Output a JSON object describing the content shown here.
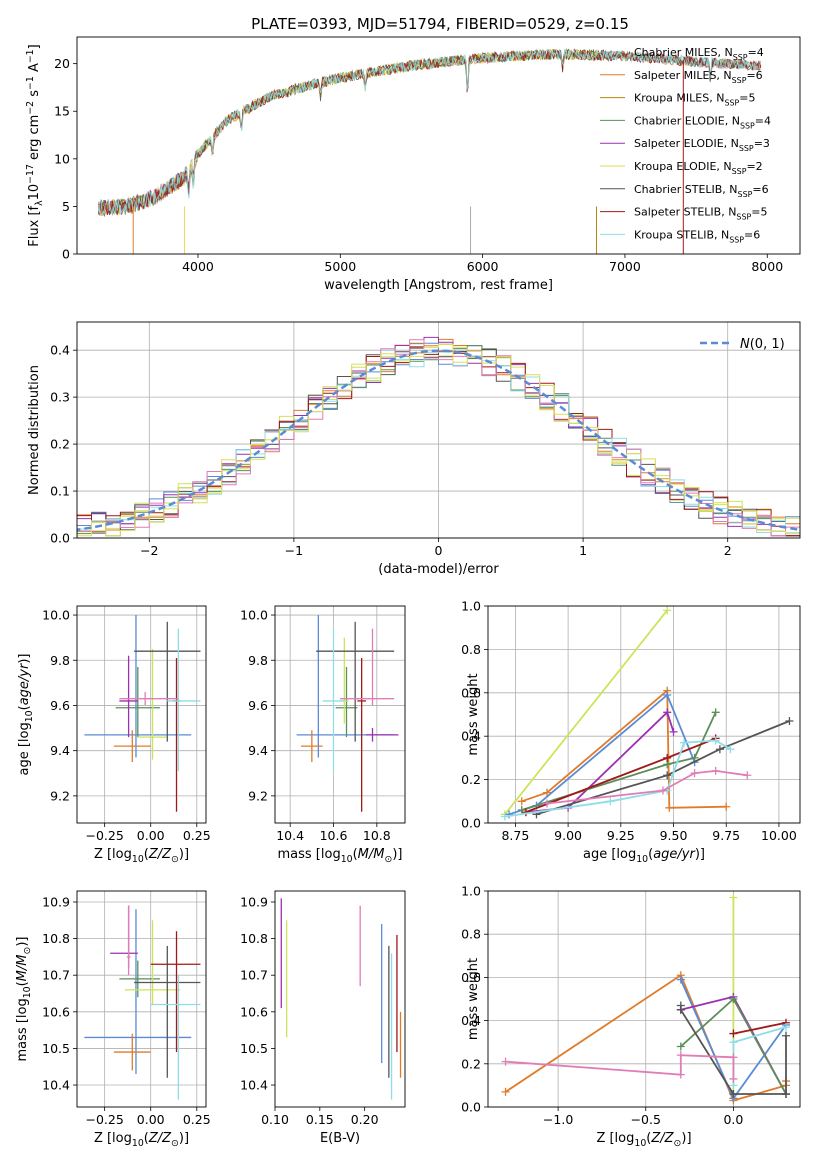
{
  "figure_title": "PLATE=0393, MJD=51794, FIBERID=0529, z=0.15",
  "colors": {
    "Chabrier MILES": "#a9a9a9",
    "Salpeter MILES": "#e07b2a",
    "Kroupa MILES": "#b8860b",
    "Chabrier ELODIE": "#5a8f5a",
    "Salpeter ELODIE": "#9b30b0",
    "Kroupa ELODIE": "#dede55",
    "Chabrier STELIB": "#555555",
    "Salpeter STELIB": "#a01818",
    "Kroupa STELIB": "#8fdde6",
    "c_blue": "#5b8bd5",
    "c_pink": "#e27cb6",
    "c_lime": "#c9e65a",
    "gauss": "#5b8bd5",
    "grid": "#b0b0b0"
  },
  "chart_data": [
    {
      "id": "spectrum",
      "type": "line",
      "title": "",
      "xlabel": "wavelength [Angstrom, rest frame]",
      "ylabel": "Flux [f_λ10^-17 erg cm^-2 s^-1 A^-1]",
      "xlim": [
        3150,
        8230
      ],
      "ylim": [
        0,
        22.8
      ],
      "xticks": [
        4000,
        5000,
        6000,
        7000,
        8000
      ],
      "yticks": [
        0,
        5,
        10,
        15,
        20
      ],
      "grid": false,
      "legend_position": "right",
      "continuum_shape": {
        "x": [
          3300,
          3500,
          3700,
          3900,
          4000,
          4200,
          4500,
          4800,
          5000,
          5500,
          6000,
          6500,
          7000,
          7500,
          7900
        ],
        "y": [
          4.8,
          5.0,
          6.0,
          8.0,
          10.5,
          14.0,
          16.5,
          17.8,
          18.5,
          19.8,
          20.6,
          21.0,
          20.8,
          20.2,
          19.8
        ]
      },
      "series": [
        {
          "name": "Chabrier MILES, N_SSP=4",
          "color_key": "Chabrier MILES"
        },
        {
          "name": "Salpeter MILES, N_SSP=6",
          "color_key": "Salpeter MILES"
        },
        {
          "name": "Kroupa MILES, N_SSP=5",
          "color_key": "Kroupa MILES"
        },
        {
          "name": "Chabrier ELODIE, N_SSP=4",
          "color_key": "Chabrier ELODIE"
        },
        {
          "name": "Salpeter ELODIE, N_SSP=3",
          "color_key": "Salpeter ELODIE"
        },
        {
          "name": "Kroupa ELODIE, N_SSP=2",
          "color_key": "Kroupa ELODIE"
        },
        {
          "name": "Chabrier STELIB, N_SSP=6",
          "color_key": "Chabrier STELIB"
        },
        {
          "name": "Salpeter STELIB, N_SSP=5",
          "color_key": "Salpeter STELIB"
        },
        {
          "name": "Kroupa STELIB, N_SSP=6",
          "color_key": "Kroupa STELIB"
        }
      ],
      "legend_rows": [
        {
          "main": "Chabrier MILES, N",
          "sub": "SSP",
          "suffix": "=4"
        },
        {
          "main": "Salpeter MILES, N",
          "sub": "SSP",
          "suffix": "=6"
        },
        {
          "main": "Kroupa MILES, N",
          "sub": "SSP",
          "suffix": "=5"
        },
        {
          "main": "Chabrier ELODIE, N",
          "sub": "SSP",
          "suffix": "=4"
        },
        {
          "main": "Salpeter ELODIE, N",
          "sub": "SSP",
          "suffix": "=3"
        },
        {
          "main": "Kroupa ELODIE, N",
          "sub": "SSP",
          "suffix": "=2"
        },
        {
          "main": "Chabrier STELIB, N",
          "sub": "SSP",
          "suffix": "=6"
        },
        {
          "main": "Salpeter STELIB, N",
          "sub": "SSP",
          "suffix": "=5"
        },
        {
          "main": "Kroupa STELIB, N",
          "sub": "SSP",
          "suffix": "=6"
        }
      ]
    },
    {
      "id": "residuals",
      "type": "histogram",
      "title": "",
      "xlabel": "(data-model)/error",
      "ylabel": "Normed distribution",
      "xlim": [
        -2.5,
        2.5
      ],
      "ylim": [
        0,
        0.46
      ],
      "xticks": [
        -2,
        -1,
        0,
        1,
        2
      ],
      "yticks": [
        0.0,
        0.1,
        0.2,
        0.3,
        0.4
      ],
      "grid": true,
      "bin_width": 0.1,
      "legend": "N(0,1)",
      "legend_position": "top-right"
    },
    {
      "id": "age_vs_Z",
      "type": "errorbar",
      "xlabel": "Z [log10(Z/Z_sun)]",
      "ylabel": "age [log10(age/yr)]",
      "xlim": [
        -0.4,
        0.3
      ],
      "ylim": [
        9.08,
        10.04
      ],
      "xticks": [
        -0.25,
        0.0,
        0.25
      ],
      "yticks": [
        9.2,
        9.4,
        9.6,
        9.8,
        10.0
      ],
      "grid": true,
      "points": [
        {
          "c": "c_blue",
          "x": -0.08,
          "xerr": [
            0.28,
            0.3
          ],
          "y": 9.47,
          "yerr": [
            0.1,
            0.53
          ]
        },
        {
          "c": "Salpeter MILES",
          "x": -0.1,
          "xerr": [
            0.1,
            0.1
          ],
          "y": 9.42,
          "yerr": [
            0.07,
            0.07
          ]
        },
        {
          "c": "Chabrier ELODIE",
          "x": -0.07,
          "xerr": [
            0.12,
            0.12
          ],
          "y": 9.59,
          "yerr": [
            0.13,
            0.18
          ]
        },
        {
          "c": "Salpeter ELODIE",
          "x": -0.12,
          "xerr": [
            0.05,
            0.05
          ],
          "y": 9.62,
          "yerr": [
            0.16,
            0.2
          ]
        },
        {
          "c": "c_lime",
          "x": 0.01,
          "xerr": [
            0.08,
            0.08
          ],
          "y": 9.46,
          "yerr": [
            0.1,
            0.39
          ]
        },
        {
          "c": "Chabrier STELIB",
          "x": 0.09,
          "xerr": [
            0.18,
            0.18
          ],
          "y": 9.84,
          "yerr": [
            0.4,
            0.13
          ]
        },
        {
          "c": "Salpeter STELIB",
          "x": 0.14,
          "xerr": [
            0.02,
            0.02
          ],
          "y": 9.62,
          "yerr": [
            0.49,
            0.19
          ]
        },
        {
          "c": "Kroupa STELIB",
          "x": 0.15,
          "xerr": [
            0.06,
            0.12
          ],
          "y": 9.62,
          "yerr": [
            0.31,
            0.32
          ]
        },
        {
          "c": "c_pink",
          "x": -0.03,
          "xerr": [
            0.14,
            0.18
          ],
          "y": 9.63,
          "yerr": [
            0.03,
            0.03
          ]
        }
      ]
    },
    {
      "id": "age_vs_mass",
      "type": "errorbar",
      "xlabel": "mass [log10(M/M_sun)]",
      "ylabel": "",
      "xlim": [
        10.33,
        10.93
      ],
      "ylim": [
        9.08,
        10.04
      ],
      "xticks": [
        10.4,
        10.6,
        10.8
      ],
      "yticks": [
        9.2,
        9.4,
        9.6,
        9.8,
        10.0
      ],
      "grid": true,
      "points": [
        {
          "c": "c_blue",
          "x": 10.53,
          "xerr": [
            0.1,
            0.35
          ],
          "y": 9.47,
          "yerr": [
            0.1,
            0.53
          ]
        },
        {
          "c": "Salpeter MILES",
          "x": 10.5,
          "xerr": [
            0.05,
            0.05
          ],
          "y": 9.42,
          "yerr": [
            0.07,
            0.07
          ]
        },
        {
          "c": "Chabrier ELODIE",
          "x": 10.66,
          "xerr": [
            0.05,
            0.05
          ],
          "y": 9.59,
          "yerr": [
            0.13,
            0.18
          ]
        },
        {
          "c": "Salpeter ELODIE",
          "x": 10.78,
          "xerr": [
            0.03,
            0.12
          ],
          "y": 9.47,
          "yerr": [
            0.03,
            0.03
          ]
        },
        {
          "c": "c_lime",
          "x": 10.65,
          "xerr": [
            0.02,
            0.02
          ],
          "y": 9.62,
          "yerr": [
            0.1,
            0.28
          ]
        },
        {
          "c": "Chabrier STELIB",
          "x": 10.7,
          "xerr": [
            0.18,
            0.18
          ],
          "y": 9.84,
          "yerr": [
            0.4,
            0.13
          ]
        },
        {
          "c": "Salpeter STELIB",
          "x": 10.73,
          "xerr": [
            0.02,
            0.02
          ],
          "y": 9.62,
          "yerr": [
            0.49,
            0.19
          ]
        },
        {
          "c": "Kroupa STELIB",
          "x": 10.6,
          "xerr": [
            0.05,
            0.05
          ],
          "y": 9.62,
          "yerr": [
            0.31,
            0.32
          ]
        },
        {
          "c": "c_pink",
          "x": 10.78,
          "xerr": [
            0.15,
            0.1
          ],
          "y": 9.63,
          "yerr": [
            0.03,
            0.31
          ]
        }
      ]
    },
    {
      "id": "weight_vs_age",
      "type": "line",
      "xlabel": "age [log10(age/yr)]",
      "ylabel": "mass weight",
      "xlim": [
        8.62,
        10.1
      ],
      "ylim": [
        0,
        1
      ],
      "xticks": [
        8.75,
        9.0,
        9.25,
        9.5,
        9.75,
        10.0
      ],
      "yticks": [
        0.0,
        0.2,
        0.4,
        0.6,
        0.8,
        1.0
      ],
      "grid": true,
      "series": [
        {
          "c": "c_lime",
          "x": [
            8.7,
            9.47
          ],
          "y": [
            0.04,
            0.98
          ]
        },
        {
          "c": "Salpeter MILES",
          "x": [
            8.78,
            8.9,
            9.47,
            9.48,
            9.75
          ],
          "y": [
            0.1,
            0.14,
            0.61,
            0.07,
            0.075
          ]
        },
        {
          "c": "c_blue",
          "x": [
            8.72,
            8.85,
            9.47,
            9.6
          ],
          "y": [
            0.04,
            0.08,
            0.59,
            0.28
          ]
        },
        {
          "c": "Salpeter ELODIE",
          "x": [
            8.8,
            9.0,
            9.47,
            9.5
          ],
          "y": [
            0.05,
            0.07,
            0.51,
            0.42
          ]
        },
        {
          "c": "Chabrier ELODIE",
          "x": [
            8.78,
            9.47,
            9.6,
            9.7
          ],
          "y": [
            0.06,
            0.27,
            0.3,
            0.51
          ]
        },
        {
          "c": "Salpeter STELIB",
          "x": [
            8.8,
            9.47,
            9.7
          ],
          "y": [
            0.05,
            0.3,
            0.39
          ]
        },
        {
          "c": "Chabrier STELIB",
          "x": [
            8.85,
            9.47,
            9.72,
            10.05
          ],
          "y": [
            0.04,
            0.22,
            0.34,
            0.47
          ]
        },
        {
          "c": "Kroupa STELIB",
          "x": [
            8.7,
            9.2,
            9.47,
            9.55,
            9.7,
            9.77
          ],
          "y": [
            0.03,
            0.1,
            0.15,
            0.37,
            0.38,
            0.34
          ]
        },
        {
          "c": "c_pink",
          "x": [
            8.9,
            9.45,
            9.6,
            9.7,
            9.85
          ],
          "y": [
            0.09,
            0.15,
            0.23,
            0.24,
            0.22
          ]
        }
      ]
    },
    {
      "id": "mass_vs_Z",
      "type": "errorbar",
      "xlabel": "Z [log10(Z/Z_sun)]",
      "ylabel": "mass [log10(M/M_sun)]",
      "xlim": [
        -0.4,
        0.3
      ],
      "ylim": [
        10.34,
        10.93
      ],
      "xticks": [
        -0.25,
        0.0,
        0.25
      ],
      "yticks": [
        10.4,
        10.5,
        10.6,
        10.7,
        10.8,
        10.9
      ],
      "grid": true,
      "points": [
        {
          "c": "c_blue",
          "x": -0.08,
          "xerr": [
            0.28,
            0.3
          ],
          "y": 10.53,
          "yerr": [
            0.1,
            0.35
          ]
        },
        {
          "c": "Salpeter MILES",
          "x": -0.1,
          "xerr": [
            0.1,
            0.1
          ],
          "y": 10.49,
          "yerr": [
            0.05,
            0.05
          ]
        },
        {
          "c": "Chabrier ELODIE",
          "x": -0.07,
          "xerr": [
            0.1,
            0.12
          ],
          "y": 10.69,
          "yerr": [
            0.05,
            0.05
          ]
        },
        {
          "c": "Salpeter ELODIE",
          "x": -0.12,
          "xerr": [
            0.1,
            0.05
          ],
          "y": 10.76,
          "yerr": [
            0.04,
            0.13
          ]
        },
        {
          "c": "c_lime",
          "x": 0.01,
          "xerr": [
            0.15,
            0.15
          ],
          "y": 10.66,
          "yerr": [
            0.04,
            0.19
          ]
        },
        {
          "c": "Chabrier STELIB",
          "x": 0.09,
          "xerr": [
            0.18,
            0.18
          ],
          "y": 10.68,
          "yerr": [
            0.26,
            0.1
          ]
        },
        {
          "c": "Salpeter STELIB",
          "x": 0.14,
          "xerr": [
            0.14,
            0.13
          ],
          "y": 10.73,
          "yerr": [
            0.24,
            0.09
          ]
        },
        {
          "c": "Kroupa STELIB",
          "x": 0.15,
          "xerr": [
            0.15,
            0.12
          ],
          "y": 10.62,
          "yerr": [
            0.26,
            0.08
          ]
        },
        {
          "c": "c_pink",
          "x": -0.12,
          "xerr": [
            0.01,
            0.01
          ],
          "y": 10.75,
          "yerr": [
            0.05,
            0.14
          ]
        }
      ]
    },
    {
      "id": "mass_vs_ebv",
      "type": "errorbar",
      "xlabel": "E(B-V)",
      "ylabel": "",
      "xlim": [
        0.1,
        0.245
      ],
      "ylim": [
        10.34,
        10.93
      ],
      "xticks": [
        0.1,
        0.15,
        0.2
      ],
      "yticks": [
        10.4,
        10.5,
        10.6,
        10.7,
        10.8,
        10.9
      ],
      "grid": false,
      "points": [
        {
          "c": "Salpeter ELODIE",
          "x": 0.107,
          "y": 10.76,
          "yerr": [
            0.15,
            0.15
          ]
        },
        {
          "c": "c_lime",
          "x": 0.113,
          "y": 10.69,
          "yerr": [
            0.16,
            0.16
          ]
        },
        {
          "c": "c_pink",
          "x": 0.195,
          "y": 10.78,
          "yerr": [
            0.11,
            0.11
          ]
        },
        {
          "c": "c_blue",
          "x": 0.219,
          "y": 10.65,
          "yerr": [
            0.19,
            0.19
          ]
        },
        {
          "c": "Chabrier STELIB",
          "x": 0.227,
          "y": 10.6,
          "yerr": [
            0.18,
            0.18
          ]
        },
        {
          "c": "Kroupa STELIB",
          "x": 0.23,
          "y": 10.56,
          "yerr": [
            0.2,
            0.2
          ]
        },
        {
          "c": "Salpeter STELIB",
          "x": 0.236,
          "y": 10.65,
          "yerr": [
            0.16,
            0.16
          ]
        },
        {
          "c": "Salpeter MILES",
          "x": 0.24,
          "y": 10.51,
          "yerr": [
            0.09,
            0.09
          ]
        }
      ]
    },
    {
      "id": "weight_vs_Z",
      "type": "line",
      "xlabel": "Z [log10(Z/Z_sun)]",
      "ylabel": "mass weight",
      "xlim": [
        -1.4,
        0.38
      ],
      "ylim": [
        0,
        1
      ],
      "xticks": [
        -1.0,
        -0.5,
        0.0
      ],
      "yticks": [
        0.0,
        0.2,
        0.4,
        0.6,
        0.8,
        1.0
      ],
      "grid": true,
      "series": [
        {
          "c": "c_lime",
          "x": [
            0.0,
            0.0
          ],
          "y": [
            0.97,
            0.04
          ]
        },
        {
          "c": "Salpeter MILES",
          "x": [
            -1.3,
            -0.3,
            0.0,
            0.3,
            0.3
          ],
          "y": [
            0.07,
            0.61,
            0.03,
            0.1,
            0.12
          ]
        },
        {
          "c": "c_blue",
          "x": [
            -0.3,
            0.0,
            0.3
          ],
          "y": [
            0.59,
            0.04,
            0.38
          ]
        },
        {
          "c": "Salpeter ELODIE",
          "x": [
            -0.3,
            0.0,
            0.3
          ],
          "y": [
            0.45,
            0.51,
            0.06
          ]
        },
        {
          "c": "Chabrier ELODIE",
          "x": [
            -0.3,
            0.0,
            0.3
          ],
          "y": [
            0.28,
            0.5,
            0.06
          ]
        },
        {
          "c": "Salpeter STELIB",
          "x": [
            0.0,
            0.3
          ],
          "y": [
            0.34,
            0.39
          ]
        },
        {
          "c": "Chabrier STELIB",
          "x": [
            -0.3,
            -0.3,
            0.0,
            0.3,
            0.3
          ],
          "y": [
            0.47,
            0.45,
            0.06,
            0.06,
            0.33
          ]
        },
        {
          "c": "Kroupa STELIB",
          "x": [
            0.0,
            0.0,
            0.3
          ],
          "y": [
            0.1,
            0.3,
            0.37
          ]
        },
        {
          "c": "c_pink",
          "x": [
            -1.3,
            -0.3,
            -0.3,
            0.0,
            0.0
          ],
          "y": [
            0.21,
            0.15,
            0.24,
            0.23,
            0.13
          ]
        }
      ]
    }
  ]
}
